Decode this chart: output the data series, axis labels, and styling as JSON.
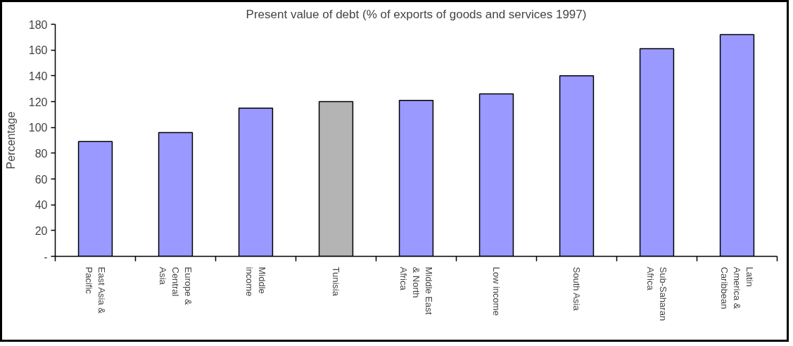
{
  "chart_data": {
    "type": "bar",
    "title": "Present value of debt (% of exports of goods and services 1997)",
    "ylabel": "Percentage",
    "categories": [
      "East Asia & Pacific",
      "Europe & Central Asia",
      "Middle income",
      "Tunisia",
      "Middle East & North Africa",
      "Low income",
      "South Asia",
      "Sub-Saharan Africa",
      "Latin America & Caribbean"
    ],
    "values": [
      89,
      96,
      115,
      120,
      121,
      126,
      140,
      161,
      172
    ],
    "colors": [
      "#9999ff",
      "#9999ff",
      "#9999ff",
      "#b4b4b4",
      "#9999ff",
      "#9999ff",
      "#9999ff",
      "#9999ff",
      "#9999ff"
    ],
    "ylim": [
      0,
      180
    ],
    "yticks": [
      {
        "value": 0,
        "label": "-"
      },
      20,
      40,
      60,
      80,
      100,
      120,
      140,
      160,
      180
    ]
  }
}
